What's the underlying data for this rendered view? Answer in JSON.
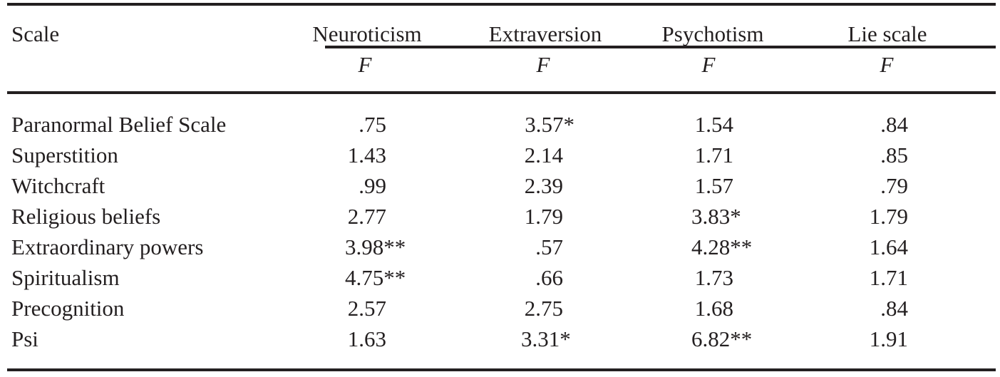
{
  "table": {
    "header": {
      "scale_label": "Scale",
      "columns": [
        "Neuroticism",
        "Extraversion",
        "Psychotism",
        "Lie scale"
      ],
      "subheader": [
        "F",
        "F",
        "F",
        "F"
      ]
    },
    "rows": [
      {
        "label": "Paranormal Belief Scale",
        "values": [
          ".75",
          "3.57*",
          "1.54",
          ".84"
        ]
      },
      {
        "label": "Superstition",
        "values": [
          "1.43",
          "2.14",
          "1.71",
          ".85"
        ]
      },
      {
        "label": "Witchcraft",
        "values": [
          ".99",
          "2.39",
          "1.57",
          ".79"
        ]
      },
      {
        "label": "Religious beliefs",
        "values": [
          "2.77",
          "1.79",
          "3.83*",
          "1.79"
        ]
      },
      {
        "label": "Extraordinary powers",
        "values": [
          "3.98**",
          ".57",
          "4.28**",
          "1.64"
        ]
      },
      {
        "label": "Spiritualism",
        "values": [
          "4.75**",
          ".66",
          "1.73",
          "1.71"
        ]
      },
      {
        "label": "Precognition",
        "values": [
          "2.57",
          "2.75",
          "1.68",
          ".84"
        ]
      },
      {
        "label": "Psi",
        "values": [
          "1.63",
          "3.31*",
          "6.82**",
          "1.91"
        ]
      }
    ]
  }
}
